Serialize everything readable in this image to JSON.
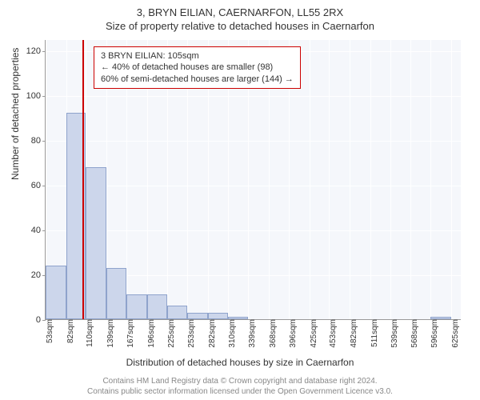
{
  "title_main": "3, BRYN EILIAN, CAERNARFON, LL55 2RX",
  "title_sub": "Size of property relative to detached houses in Caernarfon",
  "y_label": "Number of detached properties",
  "x_label": "Distribution of detached houses by size in Caernarfon",
  "annotation": {
    "line1": "3 BRYN EILIAN: 105sqm",
    "line2": "← 40% of detached houses are smaller (98)",
    "line3": "60% of semi-detached houses are larger (144) →",
    "border_color": "#cc0000",
    "bg_color": "#ffffff",
    "font_size": 11
  },
  "marker": {
    "value_sqm": 105,
    "color": "#cc0000",
    "width": 2
  },
  "chart": {
    "type": "histogram",
    "plot_bg": "#f5f7fb",
    "grid_color": "#ffffff",
    "bar_fill": "#ccd6eb",
    "bar_border": "#8fa3cc",
    "x_min": 53,
    "x_max": 640,
    "y_min": 0,
    "y_max": 125,
    "y_ticks": [
      0,
      20,
      40,
      60,
      80,
      100,
      120
    ],
    "x_ticks": [
      53,
      82,
      110,
      139,
      167,
      196,
      225,
      253,
      282,
      310,
      339,
      368,
      396,
      425,
      453,
      482,
      511,
      539,
      568,
      596,
      625
    ],
    "x_tick_suffix": "sqm",
    "bars": [
      {
        "x0": 53,
        "x1": 82,
        "y": 24
      },
      {
        "x0": 82,
        "x1": 110,
        "y": 92
      },
      {
        "x0": 110,
        "x1": 139,
        "y": 68
      },
      {
        "x0": 139,
        "x1": 167,
        "y": 23
      },
      {
        "x0": 167,
        "x1": 196,
        "y": 11
      },
      {
        "x0": 196,
        "x1": 225,
        "y": 11
      },
      {
        "x0": 225,
        "x1": 253,
        "y": 6
      },
      {
        "x0": 253,
        "x1": 282,
        "y": 3
      },
      {
        "x0": 282,
        "x1": 310,
        "y": 3
      },
      {
        "x0": 310,
        "x1": 339,
        "y": 1
      },
      {
        "x0": 596,
        "x1": 625,
        "y": 1
      }
    ]
  },
  "footer": {
    "line1": "Contains HM Land Registry data © Crown copyright and database right 2024.",
    "line2": "Contains public sector information licensed under the Open Government Licence v3.0.",
    "color": "#888888",
    "font_size": 10
  },
  "typography": {
    "title_fontsize": 13,
    "axis_label_fontsize": 12,
    "tick_fontsize": 11
  }
}
